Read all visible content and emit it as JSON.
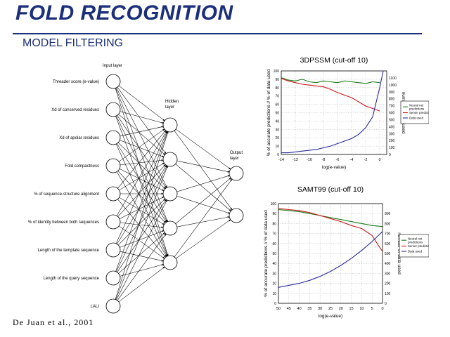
{
  "slide": {
    "title": "FOLD RECOGNITION",
    "subtitle": "MODEL FILTERING",
    "citation": "De Juan et al., 2001",
    "title_color": "#1c2f7a"
  },
  "network": {
    "input_layer_label": "Input layer",
    "hidden_layer_label": "Hidden layer",
    "output_layer_label": "Output layer",
    "inputs": [
      "Threader score (e-value)",
      "Xd of conserved residues",
      "Xd of apolar residues",
      "Fold compactness",
      "% of sequence-structure alignment",
      "% of identity between both sequences",
      "Length of the template sequence",
      "Length of the query sequence",
      "LALI"
    ],
    "hidden_count": 5,
    "output_count": 2
  },
  "chart_data": [
    {
      "type": "line",
      "title": "3DPSSM (cut-off 10)",
      "xlabel": "log(e-value)",
      "ylabel": "% of accurate predictions // % of data used",
      "y2label": "number of data used",
      "xlim": [
        -14,
        1
      ],
      "xticks": [
        -14,
        -12,
        -10,
        -8,
        -6,
        -4,
        -2,
        0
      ],
      "ylim": [
        0,
        100
      ],
      "yticks": [
        0,
        10,
        20,
        30,
        40,
        50,
        60,
        70,
        80,
        90,
        100
      ],
      "y2lim": [
        0,
        1200
      ],
      "y2ticks": [
        0,
        100,
        200,
        300,
        400,
        500,
        600,
        700,
        800,
        900,
        1000,
        1100
      ],
      "grid": true,
      "legend_position": "right",
      "series": [
        {
          "name": "Neural net predictions",
          "color": "#1a7a1a",
          "x": [
            -14,
            -13,
            -12,
            -11,
            -10,
            -9,
            -8,
            -7,
            -6,
            -5,
            -4,
            -3,
            -2,
            -1,
            0
          ],
          "values": [
            92,
            89,
            88,
            90,
            87,
            86,
            88,
            87,
            86,
            88,
            87,
            86,
            85,
            87,
            86
          ]
        },
        {
          "name": "Server predictions",
          "color": "#cc1a1a",
          "x": [
            -14,
            -13,
            -12,
            -11,
            -10,
            -9,
            -8,
            -7,
            -6,
            -5,
            -4,
            -3,
            -2,
            -1,
            0
          ],
          "values": [
            91,
            88,
            86,
            84,
            83,
            82,
            81,
            78,
            74,
            71,
            68,
            63,
            58,
            55,
            52
          ]
        },
        {
          "name": "Data used",
          "color": "#2a2a99",
          "x": [
            -14,
            -13,
            -12,
            -11,
            -10,
            -9,
            -8,
            -7,
            -6,
            -5,
            -4,
            -3,
            -2,
            -1,
            0,
            0.5
          ],
          "values": [
            2,
            2,
            3,
            4,
            5,
            6,
            8,
            10,
            13,
            16,
            19,
            24,
            32,
            45,
            80,
            100
          ]
        }
      ]
    },
    {
      "type": "line",
      "title": "SAMT99 (cut-off 10)",
      "xlabel": "log(e-value)",
      "ylabel": "% of accurate predictions // % of data used",
      "y2label": "number of data used",
      "xlim": [
        50,
        0
      ],
      "xticks": [
        50,
        45,
        40,
        35,
        30,
        25,
        20,
        15,
        10,
        5,
        0
      ],
      "ylim": [
        0,
        100
      ],
      "yticks": [
        0,
        10,
        20,
        30,
        40,
        50,
        60,
        70,
        80,
        90,
        100
      ],
      "y2lim": [
        0,
        1000
      ],
      "y2ticks": [
        0,
        100,
        200,
        300,
        400,
        500,
        600,
        700,
        800,
        900
      ],
      "grid": true,
      "legend_position": "right",
      "series": [
        {
          "name": "Neural net predictions",
          "color": "#1a7a1a",
          "x": [
            50,
            45,
            40,
            35,
            30,
            25,
            20,
            15,
            10,
            5,
            0
          ],
          "values": [
            94,
            93,
            92,
            90,
            88,
            86,
            84,
            82,
            80,
            78,
            77
          ]
        },
        {
          "name": "Server predictions",
          "color": "#cc1a1a",
          "x": [
            50,
            45,
            40,
            35,
            30,
            25,
            20,
            15,
            10,
            5,
            2,
            0
          ],
          "values": [
            95,
            94,
            93,
            91,
            88,
            85,
            82,
            78,
            75,
            68,
            58,
            52
          ]
        },
        {
          "name": "Data used",
          "color": "#2a2a99",
          "x": [
            50,
            45,
            40,
            35,
            30,
            25,
            20,
            15,
            10,
            5,
            2,
            0
          ],
          "values": [
            16,
            18,
            20,
            23,
            27,
            32,
            38,
            45,
            53,
            62,
            68,
            72
          ]
        }
      ]
    }
  ]
}
